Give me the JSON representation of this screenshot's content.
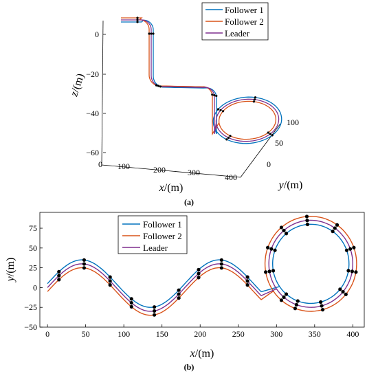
{
  "figure": {
    "panel_a_label": "(a)",
    "panel_b_label": "(b)"
  },
  "chart_data": [
    {
      "type": "line",
      "panel": "(a)",
      "projection": "3d",
      "xlabel": "x/(m)",
      "ylabel": "y/(m)",
      "zlabel": "z/(m)",
      "x_ticks": [
        "0",
        "100",
        "200",
        "300",
        "400"
      ],
      "y_ticks": [
        "0",
        "50",
        "100"
      ],
      "z_ticks": [
        "0",
        "−20",
        "−40",
        "−60"
      ],
      "xlim": [
        0,
        400
      ],
      "ylim": [
        -30,
        110
      ],
      "zlim": [
        -60,
        5
      ],
      "legend": {
        "position": "top-right",
        "entries": [
          "Follower 1",
          "Follower 2",
          "Leader"
        ]
      },
      "grid": false,
      "series": [
        {
          "name": "Follower 1",
          "color": "#0072BD",
          "lateral_offset": 5
        },
        {
          "name": "Follower 2",
          "color": "#D95319",
          "lateral_offset": -5
        },
        {
          "name": "Leader",
          "color": "#7E2F8E",
          "lateral_offset": 0
        }
      ],
      "path": {
        "x_range": [
          0,
          400
        ],
        "y_wave_amplitude": 30,
        "y_wave_period": 180,
        "loop_center": [
          345,
          30
        ],
        "loop_radius": 55,
        "z_levels": [
          0,
          -25,
          -50,
          -55
        ]
      },
      "marker_x": [
        20,
        80,
        140,
        200,
        260,
        300,
        330,
        360,
        390
      ]
    },
    {
      "type": "line",
      "panel": "(b)",
      "xlabel": "x/(m)",
      "ylabel": "y/(m)",
      "xlim": [
        -10,
        415
      ],
      "ylim": [
        -50,
        95
      ],
      "x_ticks": [
        0,
        50,
        100,
        150,
        200,
        250,
        300,
        350,
        400
      ],
      "y_ticks": [
        -50,
        -25,
        0,
        25,
        50,
        75
      ],
      "legend": {
        "position": "top-left",
        "entries": [
          "Follower 1",
          "Follower 2",
          "Leader"
        ]
      },
      "grid": false,
      "series": [
        {
          "name": "Follower 1",
          "color": "#0072BD",
          "wave_y_offset": 5,
          "loop_radius": 50
        },
        {
          "name": "Follower 2",
          "color": "#D95319",
          "wave_y_offset": -5,
          "loop_radius": 60
        },
        {
          "name": "Leader",
          "color": "#7E2F8E",
          "wave_y_offset": 0,
          "loop_radius": 55
        }
      ],
      "wave": {
        "amplitude": 30,
        "period": 180,
        "x_start": 0,
        "x_end": 280
      },
      "loop": {
        "center": [
          345,
          30
        ],
        "start_angle_deg": 215
      },
      "marker_x_wave": [
        15,
        48,
        82,
        110,
        140,
        172,
        198,
        228,
        262
      ],
      "marker_angles_deg": [
        230,
        250,
        285,
        320,
        350,
        20,
        55,
        95,
        130,
        160,
        190
      ]
    }
  ]
}
